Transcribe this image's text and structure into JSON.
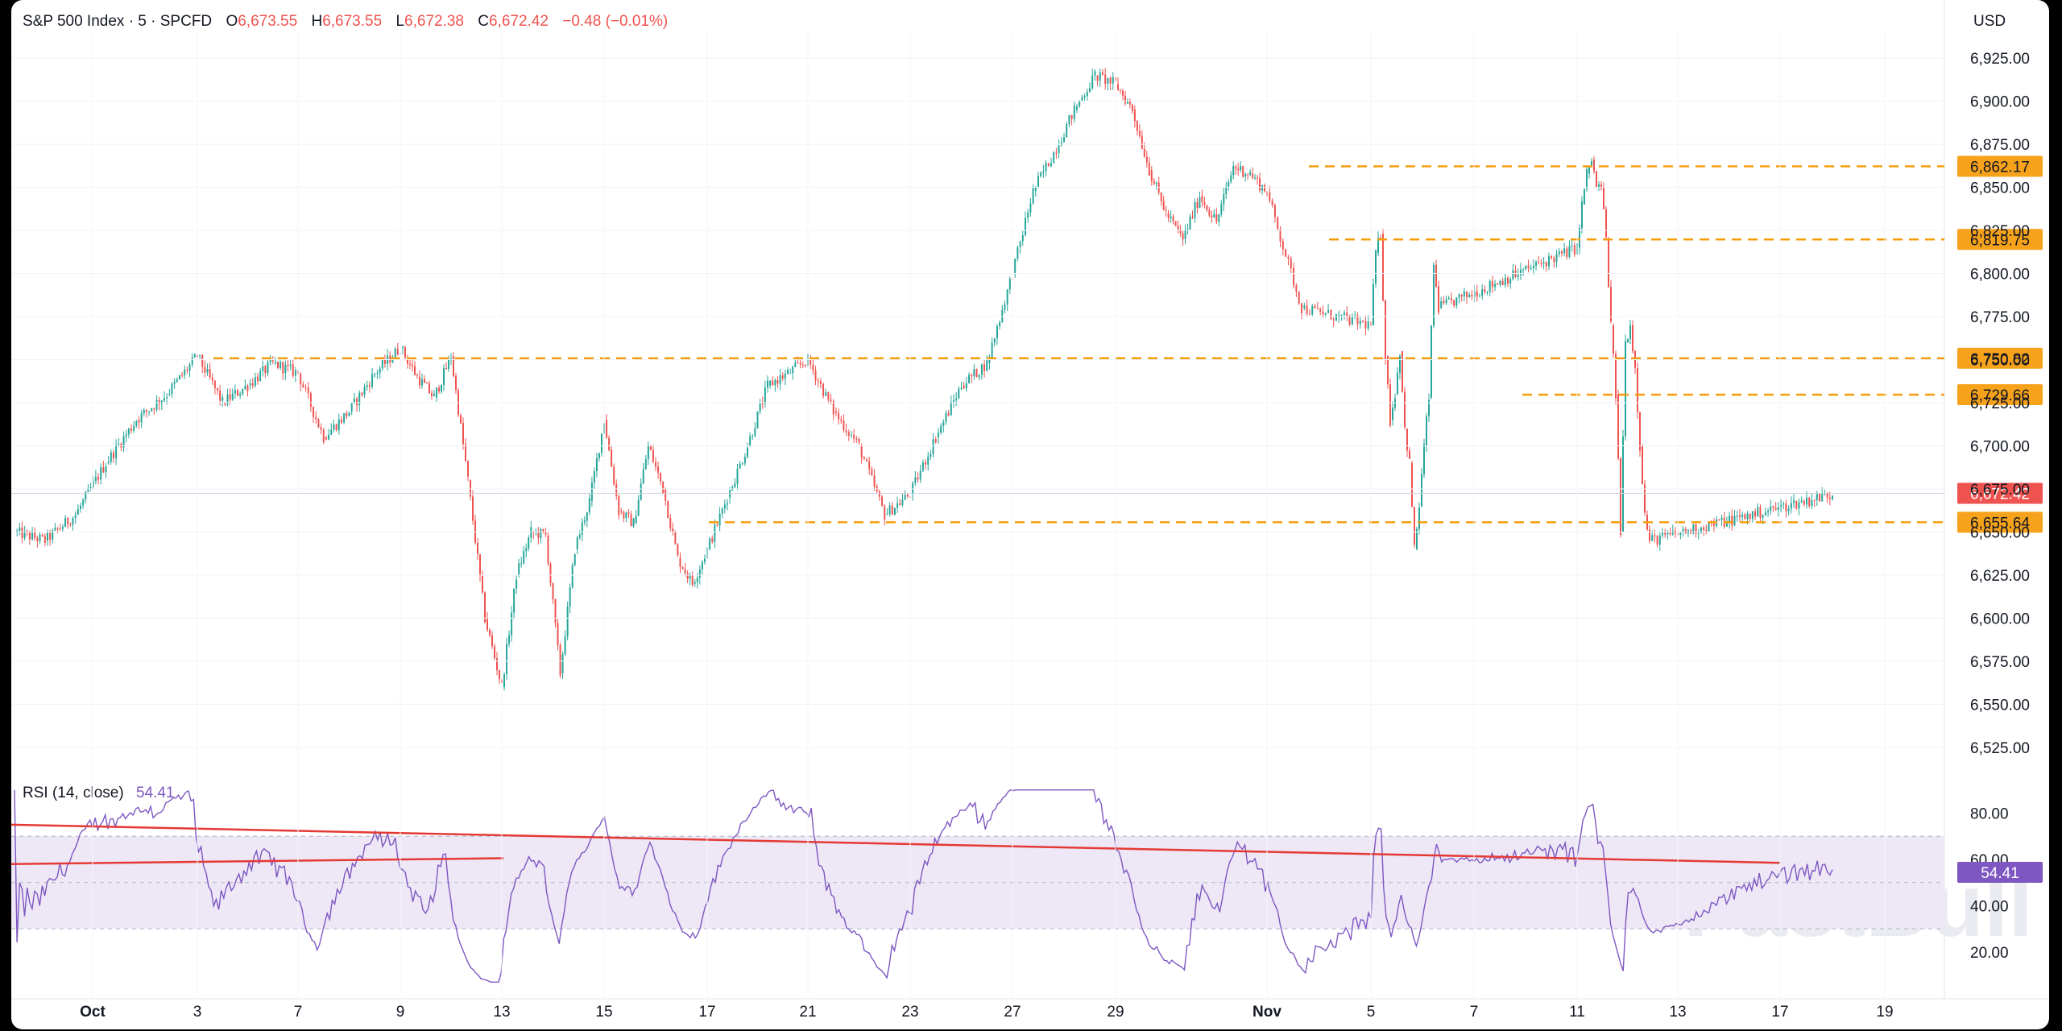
{
  "header": {
    "symbol": "S&P 500 Index · 5 · SPCFD",
    "open_label": "O",
    "open": "6,673.55",
    "high_label": "H",
    "high": "6,673.55",
    "low_label": "L",
    "low": "6,672.38",
    "close_label": "C",
    "close": "6,672.42",
    "change": "−0.48 (−0.01%)",
    "currency": "USD"
  },
  "rsi_header": {
    "label": "RSI (14, close)",
    "value": "54.41"
  },
  "watermark": "FastBull",
  "colors": {
    "up": "#26a69a",
    "down": "#ef5350",
    "level": "#f59e0b",
    "rsi_line": "#7e57c2",
    "rsi_band": "#ede7f6",
    "trend": "#e53935",
    "last_price_bg": "#ef5350",
    "level_label_bg": "#f7a21b"
  },
  "chart_data": [
    {
      "type": "candlestick",
      "title": "S&P 500 Index · 5 · SPCFD",
      "ylim": [
        6510,
        6940
      ],
      "y_ticks": [
        "6,525.00",
        "6,550.00",
        "6,575.00",
        "6,600.00",
        "6,625.00",
        "6,650.00",
        "6,675.00",
        "6,700.00",
        "6,725.00",
        "6,750.00",
        "6,775.00",
        "6,800.00",
        "6,825.00",
        "6,850.00",
        "6,875.00",
        "6,900.00",
        "6,925.00"
      ],
      "x_ticks": [
        "Oct",
        "3",
        "7",
        "9",
        "13",
        "15",
        "17",
        "21",
        "23",
        "27",
        "29",
        "Nov",
        "5",
        "7",
        "11",
        "13",
        "17",
        "19"
      ],
      "session_path": [
        [
          "Oct",
          6650
        ],
        [
          "",
          6645
        ],
        [
          "",
          6660
        ],
        [
          "",
          6690
        ],
        [
          "",
          6715
        ],
        [
          "",
          6730
        ],
        [
          "3",
          6752
        ],
        [
          "",
          6725
        ],
        [
          "",
          6735
        ],
        [
          "",
          6748
        ],
        [
          "7",
          6742
        ],
        [
          "",
          6705
        ],
        [
          "",
          6720
        ],
        [
          "",
          6742
        ],
        [
          "9",
          6757
        ],
        [
          "",
          6740
        ],
        [
          "",
          6728
        ],
        [
          "",
          6752
        ],
        [
          "",
          6680
        ],
        [
          "",
          6600
        ],
        [
          "13",
          6560
        ],
        [
          "",
          6625
        ],
        [
          "",
          6650
        ],
        [
          "",
          6648
        ],
        [
          "",
          6568
        ],
        [
          "",
          6640
        ],
        [
          "",
          6668
        ],
        [
          "15",
          6715
        ],
        [
          "",
          6662
        ],
        [
          "",
          6655
        ],
        [
          "",
          6700
        ],
        [
          "",
          6675
        ],
        [
          "",
          6635
        ],
        [
          "",
          6620
        ],
        [
          "17",
          6640
        ],
        [
          "",
          6670
        ],
        [
          "",
          6700
        ],
        [
          "",
          6735
        ],
        [
          "",
          6742
        ],
        [
          "21",
          6750
        ],
        [
          "",
          6720
        ],
        [
          "",
          6700
        ],
        [
          "",
          6660
        ],
        [
          "23",
          6672
        ],
        [
          "",
          6705
        ],
        [
          "",
          6735
        ],
        [
          "",
          6748
        ],
        [
          "27",
          6800
        ],
        [
          "",
          6848
        ],
        [
          "",
          6870
        ],
        [
          "",
          6895
        ],
        [
          "",
          6915
        ],
        [
          "29",
          6910
        ],
        [
          "",
          6895
        ],
        [
          "",
          6860
        ],
        [
          "",
          6835
        ],
        [
          "",
          6820
        ],
        [
          "",
          6845
        ],
        [
          "",
          6830
        ],
        [
          "",
          6862
        ],
        [
          "",
          6858
        ],
        [
          "Nov",
          6847
        ],
        [
          "",
          6780
        ],
        [
          "",
          6775
        ],
        [
          "5",
          6770
        ],
        [
          "",
          6812
        ],
        [
          "",
          6823
        ],
        [
          "",
          6752
        ],
        [
          "",
          6715
        ],
        [
          "",
          6730
        ],
        [
          "",
          6755
        ],
        [
          "",
          6710
        ],
        [
          "7",
          6690
        ],
        [
          "",
          6640
        ],
        [
          "",
          6665
        ],
        [
          "",
          6700
        ],
        [
          "",
          6728
        ],
        [
          "",
          6805
        ],
        [
          "",
          6780
        ],
        [
          "11",
          6815
        ],
        [
          "",
          6840
        ],
        [
          "",
          6858
        ],
        [
          "",
          6866
        ],
        [
          "",
          6850
        ],
        [
          "13",
          6850
        ],
        [
          "",
          6820
        ],
        [
          "",
          6770
        ],
        [
          "",
          6730
        ],
        [
          "",
          6650
        ],
        [
          "",
          6760
        ],
        [
          "",
          6770
        ],
        [
          "17",
          6745
        ],
        [
          "",
          6700
        ],
        [
          "",
          6660
        ],
        [
          "",
          6645
        ],
        [
          "",
          6672
        ]
      ],
      "levels": [
        {
          "value": 6862.17,
          "label": "6,862.17",
          "from": "Nov"
        },
        {
          "value": 6819.75,
          "label": "6,819.75",
          "from": "Nov"
        },
        {
          "value": 6750.82,
          "label": "6,750.82",
          "from": "3"
        },
        {
          "value": 6729.66,
          "label": "6,729.66",
          "from": "7"
        },
        {
          "value": 6655.64,
          "label": "6,655.64",
          "from": "17"
        }
      ],
      "last_price": {
        "value": 6672.42,
        "label": "6,672.42"
      }
    },
    {
      "type": "line",
      "name": "RSI (14, close)",
      "ylim": [
        5,
        92
      ],
      "y_ticks": [
        "20.00",
        "40.00",
        "60.00",
        "80.00"
      ],
      "band": [
        30,
        70
      ],
      "last": {
        "value": 54.41,
        "label": "54.41"
      }
    }
  ]
}
